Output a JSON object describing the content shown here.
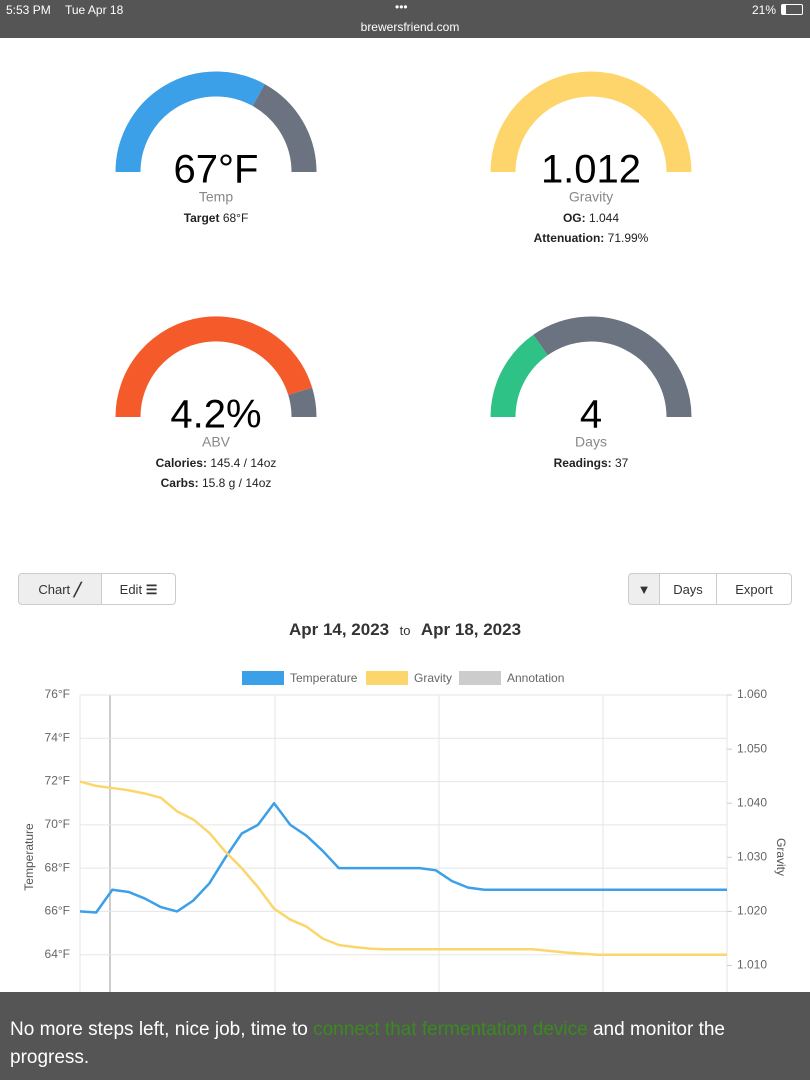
{
  "status_bar": {
    "time": "5:53 PM",
    "date": "Tue Apr 18",
    "url": "brewersfriend.com",
    "battery": "21%"
  },
  "gauges": [
    {
      "value": "67°F",
      "label": "Temp",
      "details": [
        {
          "key": "Target",
          "text": "68°F"
        }
      ]
    },
    {
      "value": "1.012",
      "label": "Gravity",
      "details": [
        {
          "key": "OG:",
          "text": "1.044"
        },
        {
          "key": "Attenuation:",
          "text": "71.99%"
        }
      ]
    },
    {
      "value": "4.2%",
      "label": "ABV",
      "details": [
        {
          "key": "Calories:",
          "text": "145.4 / 14oz"
        },
        {
          "key": "Carbs:",
          "text": "15.8 g / 14oz"
        }
      ]
    },
    {
      "value": "4",
      "label": "Days",
      "details": [
        {
          "key": "Readings:",
          "text": "37"
        }
      ]
    }
  ],
  "toolbar": {
    "chart": "Chart",
    "edit": "Edit",
    "days": "Days",
    "export": "Export"
  },
  "date_range": {
    "from": "Apr 14, 2023",
    "to_word": "to",
    "to": "Apr 18, 2023"
  },
  "chart_data": {
    "type": "line",
    "categories": [
      null,
      null,
      null,
      null,
      null,
      null,
      null,
      null,
      null,
      null,
      null,
      null,
      null,
      null,
      null,
      null,
      null,
      null,
      null,
      null,
      null,
      null,
      null,
      null,
      null,
      null,
      null,
      null,
      null,
      null,
      null,
      null,
      null,
      null,
      null,
      null,
      null,
      null,
      null,
      null,
      null
    ],
    "series": [
      {
        "name": "Temperature",
        "color": "#3ba0e8",
        "values": [
          66.0,
          65.95,
          67.0,
          66.9,
          66.6,
          66.2,
          66.0,
          66.5,
          67.3,
          68.5,
          69.6,
          70.0,
          71.0,
          70.0,
          69.5,
          68.8,
          68.0,
          68.0,
          68.0,
          68.0,
          68.0,
          68.0,
          67.9,
          67.4,
          67.1,
          67.0,
          67.0,
          67.0,
          67.0,
          67.0,
          67.0,
          67.0,
          67.0,
          67.0,
          67.0,
          67.0,
          67.0,
          67.0,
          67.0,
          67.0,
          67.0
        ]
      },
      {
        "name": "Gravity",
        "color": "#fbd66d",
        "axis": "y2",
        "values": [
          1.044,
          1.0432,
          1.0428,
          1.0424,
          1.0418,
          1.041,
          1.0385,
          1.037,
          1.0345,
          1.031,
          1.028,
          1.0245,
          1.0205,
          1.0185,
          1.0172,
          1.015,
          1.0138,
          1.0134,
          1.0131,
          1.013,
          1.013,
          1.013,
          1.013,
          1.013,
          1.013,
          1.013,
          1.013,
          1.013,
          1.013,
          1.0127,
          1.0124,
          1.0122,
          1.012,
          1.012,
          1.012,
          1.012,
          1.012,
          1.012,
          1.012,
          1.012,
          1.012
        ]
      }
    ],
    "annotation_legend": {
      "name": "Annotation",
      "color": "#cccccc"
    },
    "y_label": "Temperature",
    "y2_label": "Gravity",
    "ylim": [
      62,
      76
    ],
    "yticks": [
      {
        "value": 64,
        "label": "64°F"
      },
      {
        "value": 66,
        "label": "66°F"
      },
      {
        "value": 68,
        "label": "68°F"
      },
      {
        "value": 70,
        "label": "70°F"
      },
      {
        "value": 72,
        "label": "72°F"
      },
      {
        "value": 74,
        "label": "74°F"
      },
      {
        "value": 76,
        "label": "76°F"
      }
    ],
    "y2lim": [
      1.004,
      1.06
    ],
    "y2ticks": [
      {
        "value": 1.01,
        "label": "1.010"
      },
      {
        "value": 1.02,
        "label": "1.020"
      },
      {
        "value": 1.03,
        "label": "1.030"
      },
      {
        "value": 1.04,
        "label": "1.040"
      },
      {
        "value": 1.05,
        "label": "1.050"
      },
      {
        "value": 1.06,
        "label": "1.060"
      }
    ],
    "grid": true
  },
  "banner": {
    "before": "No more steps left, nice job, time to ",
    "link": "connect that fermentation device",
    "after": " and monitor the progress."
  }
}
